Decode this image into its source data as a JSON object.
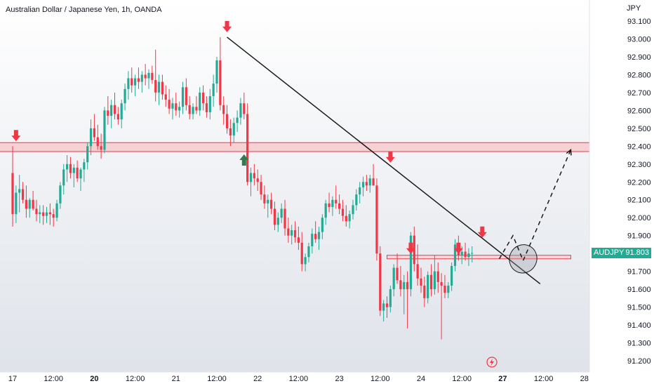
{
  "title": "Australian Dollar / Japanese Yen, 1h, OANDA",
  "currency": "JPY",
  "symbol_tag": {
    "symbol": "AUDJPY",
    "price": "91.803",
    "color": "#22ab94"
  },
  "lightning_icon": "lightning-icon",
  "colors": {
    "up": "#22ab94",
    "down": "#f23645",
    "zone_fill": "#f7c9cc",
    "zone_stroke": "#f23645",
    "trendline": "#1a1a1a",
    "arrow_red": "#f23645",
    "arrow_green": "#2e7d4a",
    "background_top": "#ffffff",
    "background_bottom": "#dfe3ea"
  },
  "chart_data": {
    "type": "candlestick",
    "title": "Australian Dollar / Japanese Yen, 1h, OANDA",
    "ylabel": "JPY",
    "ylim": [
      91.15,
      93.18
    ],
    "grid": false,
    "y_ticks": [
      "93.100",
      "93.000",
      "92.900",
      "92.800",
      "92.700",
      "92.600",
      "92.500",
      "92.400",
      "92.300",
      "92.200",
      "92.100",
      "92.000",
      "91.900",
      "91.800",
      "91.700",
      "91.600",
      "91.500",
      "91.400",
      "91.300",
      "91.200"
    ],
    "x_ticks": [
      {
        "label": "17",
        "bold": false,
        "pos": 0
      },
      {
        "label": "12:00",
        "bold": false,
        "pos": 12
      },
      {
        "label": "20",
        "bold": true,
        "pos": 24
      },
      {
        "label": "12:00",
        "bold": false,
        "pos": 36
      },
      {
        "label": "21",
        "bold": false,
        "pos": 48
      },
      {
        "label": "12:00",
        "bold": false,
        "pos": 60
      },
      {
        "label": "22",
        "bold": false,
        "pos": 72
      },
      {
        "label": "12:00",
        "bold": false,
        "pos": 84
      },
      {
        "label": "23",
        "bold": false,
        "pos": 96
      },
      {
        "label": "12:00",
        "bold": false,
        "pos": 108
      },
      {
        "label": "24",
        "bold": false,
        "pos": 120
      },
      {
        "label": "12:00",
        "bold": false,
        "pos": 132
      },
      {
        "label": "27",
        "bold": true,
        "pos": 144
      },
      {
        "label": "12:00",
        "bold": false,
        "pos": 156
      },
      {
        "label": "28",
        "bold": false,
        "pos": 168
      }
    ],
    "annotations": {
      "resistance_zone": {
        "from": 92.37,
        "to": 92.42,
        "x_start": -4,
        "x_end": 171
      },
      "support_zone": {
        "from": 91.77,
        "to": 91.79,
        "x_start": 110,
        "x_end": 164
      },
      "trendline": [
        {
          "x": 63,
          "y": 93.01
        },
        {
          "x": 155,
          "y": 91.63
        }
      ],
      "forecast_path": [
        {
          "x": 143,
          "y": 91.77
        },
        {
          "x": 147,
          "y": 91.9
        },
        {
          "x": 150,
          "y": 91.76
        },
        {
          "x": 164,
          "y": 92.38
        }
      ],
      "ellipse": {
        "x": 150,
        "y": 91.77,
        "rx_bars": 4,
        "ry_price": 0.08
      },
      "arrows_down": [
        {
          "x": 1,
          "y": 92.42
        },
        {
          "x": 63,
          "y": 93.03
        },
        {
          "x": 111,
          "y": 92.3
        },
        {
          "x": 117,
          "y": 91.79
        },
        {
          "x": 131,
          "y": 91.79
        },
        {
          "x": 138,
          "y": 91.88
        }
      ],
      "arrows_up": [
        {
          "x": 68,
          "y": 92.37
        }
      ]
    },
    "candles": [
      [
        92.25,
        92.4,
        91.95,
        92.02
      ],
      [
        92.02,
        92.18,
        91.97,
        92.14
      ],
      [
        92.14,
        92.24,
        92.03,
        92.16
      ],
      [
        92.16,
        92.2,
        92.08,
        92.1
      ],
      [
        92.1,
        92.18,
        92.0,
        92.05
      ],
      [
        92.05,
        92.11,
        92.0,
        92.1
      ],
      [
        92.1,
        92.15,
        92.04,
        92.05
      ],
      [
        92.05,
        92.1,
        91.98,
        92.02
      ],
      [
        92.02,
        92.07,
        91.97,
        92.03
      ],
      [
        92.03,
        92.07,
        91.96,
        92.01
      ],
      [
        92.01,
        92.06,
        91.97,
        92.03
      ],
      [
        92.03,
        92.08,
        91.96,
        92.02
      ],
      [
        92.02,
        92.05,
        91.95,
        92.0
      ],
      [
        92.0,
        92.1,
        91.98,
        92.08
      ],
      [
        92.08,
        92.2,
        92.05,
        92.18
      ],
      [
        92.18,
        92.3,
        92.13,
        92.27
      ],
      [
        92.27,
        92.35,
        92.2,
        92.3
      ],
      [
        92.3,
        92.34,
        92.22,
        92.25
      ],
      [
        92.25,
        92.3,
        92.17,
        92.28
      ],
      [
        92.28,
        92.32,
        92.2,
        92.22
      ],
      [
        92.22,
        92.28,
        92.15,
        92.27
      ],
      [
        92.27,
        92.33,
        92.2,
        92.31
      ],
      [
        92.31,
        92.42,
        92.27,
        92.4
      ],
      [
        92.4,
        92.55,
        92.35,
        92.5
      ],
      [
        92.5,
        92.58,
        92.43,
        92.45
      ],
      [
        92.45,
        92.52,
        92.38,
        92.4
      ],
      [
        92.4,
        92.47,
        92.33,
        92.38
      ],
      [
        92.38,
        92.62,
        92.36,
        92.6
      ],
      [
        92.6,
        92.68,
        92.52,
        92.57
      ],
      [
        92.57,
        92.66,
        92.5,
        92.63
      ],
      [
        92.63,
        92.7,
        92.55,
        92.58
      ],
      [
        92.58,
        92.62,
        92.52,
        92.55
      ],
      [
        92.55,
        92.66,
        92.5,
        92.64
      ],
      [
        92.64,
        92.75,
        92.6,
        92.72
      ],
      [
        92.72,
        92.82,
        92.66,
        92.78
      ],
      [
        92.78,
        92.84,
        92.7,
        92.74
      ],
      [
        92.74,
        92.8,
        92.68,
        92.78
      ],
      [
        92.78,
        92.84,
        92.72,
        92.76
      ],
      [
        92.76,
        92.82,
        92.7,
        92.8
      ],
      [
        92.8,
        92.86,
        92.74,
        92.78
      ],
      [
        92.78,
        92.83,
        92.72,
        92.81
      ],
      [
        92.81,
        92.85,
        92.75,
        92.77
      ],
      [
        92.77,
        92.94,
        92.65,
        92.7
      ],
      [
        92.7,
        92.8,
        92.63,
        92.76
      ],
      [
        92.76,
        92.8,
        92.66,
        92.69
      ],
      [
        92.69,
        92.74,
        92.62,
        92.66
      ],
      [
        92.66,
        92.72,
        92.58,
        92.61
      ],
      [
        92.61,
        92.67,
        92.55,
        92.64
      ],
      [
        92.64,
        92.7,
        92.57,
        92.6
      ],
      [
        92.6,
        92.65,
        92.56,
        92.62
      ],
      [
        92.62,
        92.76,
        92.58,
        92.73
      ],
      [
        92.73,
        92.78,
        92.6,
        92.63
      ],
      [
        92.63,
        92.68,
        92.55,
        92.58
      ],
      [
        92.58,
        92.64,
        92.55,
        92.62
      ],
      [
        92.62,
        92.68,
        92.58,
        92.6
      ],
      [
        92.6,
        92.73,
        92.57,
        92.7
      ],
      [
        92.7,
        92.74,
        92.6,
        92.64
      ],
      [
        92.64,
        92.68,
        92.56,
        92.59
      ],
      [
        92.59,
        92.72,
        92.55,
        92.68
      ],
      [
        92.68,
        92.8,
        92.62,
        92.75
      ],
      [
        92.75,
        92.9,
        92.7,
        92.88
      ],
      [
        92.88,
        93.01,
        92.6,
        92.63
      ],
      [
        92.63,
        92.68,
        92.52,
        92.58
      ],
      [
        92.58,
        92.63,
        92.47,
        92.5
      ],
      [
        92.5,
        92.55,
        92.4,
        92.46
      ],
      [
        92.46,
        92.56,
        92.42,
        92.53
      ],
      [
        92.53,
        92.6,
        92.48,
        92.56
      ],
      [
        92.56,
        92.67,
        92.52,
        92.64
      ],
      [
        92.64,
        92.7,
        92.55,
        92.58
      ],
      [
        92.58,
        92.64,
        92.18,
        92.2
      ],
      [
        92.2,
        92.28,
        92.12,
        92.25
      ],
      [
        92.25,
        92.3,
        92.18,
        92.22
      ],
      [
        92.22,
        92.27,
        92.15,
        92.2
      ],
      [
        92.2,
        92.24,
        92.1,
        92.13
      ],
      [
        92.13,
        92.18,
        92.05,
        92.08
      ],
      [
        92.08,
        92.13,
        92.0,
        92.1
      ],
      [
        92.1,
        92.14,
        92.02,
        92.05
      ],
      [
        92.05,
        92.09,
        91.93,
        91.96
      ],
      [
        91.96,
        92.03,
        91.92,
        92.0
      ],
      [
        92.0,
        92.08,
        91.97,
        92.05
      ],
      [
        92.05,
        92.1,
        91.9,
        91.94
      ],
      [
        91.94,
        92.0,
        91.86,
        91.9
      ],
      [
        91.9,
        91.96,
        91.85,
        91.93
      ],
      [
        91.93,
        91.98,
        91.86,
        91.89
      ],
      [
        91.89,
        91.95,
        91.82,
        91.86
      ],
      [
        91.86,
        91.92,
        91.7,
        91.74
      ],
      [
        91.74,
        91.8,
        91.7,
        91.78
      ],
      [
        91.78,
        91.86,
        91.75,
        91.84
      ],
      [
        91.84,
        91.94,
        91.8,
        91.91
      ],
      [
        91.91,
        91.98,
        91.86,
        91.88
      ],
      [
        91.88,
        91.95,
        91.82,
        91.92
      ],
      [
        91.92,
        92.02,
        91.88,
        92.0
      ],
      [
        92.0,
        92.1,
        91.96,
        92.08
      ],
      [
        92.08,
        92.14,
        92.03,
        92.06
      ],
      [
        92.06,
        92.12,
        92.01,
        92.1
      ],
      [
        92.1,
        92.18,
        92.05,
        92.08
      ],
      [
        92.08,
        92.13,
        92.02,
        92.05
      ],
      [
        92.05,
        92.1,
        91.98,
        92.01
      ],
      [
        92.01,
        92.07,
        91.95,
        91.98
      ],
      [
        91.98,
        92.04,
        91.94,
        92.02
      ],
      [
        92.02,
        92.1,
        91.99,
        92.07
      ],
      [
        92.07,
        92.16,
        92.04,
        92.13
      ],
      [
        92.13,
        92.2,
        92.08,
        92.17
      ],
      [
        92.17,
        92.23,
        92.12,
        92.2
      ],
      [
        92.2,
        92.24,
        92.15,
        92.18
      ],
      [
        92.18,
        92.24,
        92.14,
        92.22
      ],
      [
        92.22,
        92.3,
        92.18,
        92.18
      ],
      [
        92.18,
        92.22,
        91.76,
        91.8
      ],
      [
        91.8,
        91.84,
        91.45,
        91.48
      ],
      [
        91.48,
        91.54,
        91.42,
        91.52
      ],
      [
        91.52,
        91.56,
        91.44,
        91.5
      ],
      [
        91.5,
        91.62,
        91.47,
        91.6
      ],
      [
        91.6,
        91.74,
        91.56,
        91.72
      ],
      [
        91.72,
        91.8,
        91.63,
        91.65
      ],
      [
        91.65,
        91.73,
        91.56,
        91.6
      ],
      [
        91.6,
        91.68,
        91.46,
        91.64
      ],
      [
        91.64,
        91.7,
        91.38,
        91.6
      ],
      [
        91.6,
        91.92,
        91.56,
        91.9
      ],
      [
        91.9,
        91.95,
        91.7,
        91.74
      ],
      [
        91.74,
        91.85,
        91.62,
        91.66
      ],
      [
        91.66,
        91.72,
        91.58,
        91.62
      ],
      [
        91.62,
        91.67,
        91.5,
        91.55
      ],
      [
        91.55,
        91.7,
        91.52,
        91.68
      ],
      [
        91.68,
        91.74,
        91.56,
        91.6
      ],
      [
        91.6,
        91.79,
        91.57,
        91.7
      ],
      [
        91.7,
        91.75,
        91.58,
        91.64
      ],
      [
        91.64,
        91.69,
        91.32,
        91.62
      ],
      [
        91.62,
        91.68,
        91.55,
        91.58
      ],
      [
        91.58,
        91.64,
        91.55,
        91.62
      ],
      [
        91.62,
        91.75,
        91.59,
        91.73
      ],
      [
        91.73,
        91.88,
        91.7,
        91.85
      ],
      [
        91.85,
        91.9,
        91.76,
        91.79
      ],
      [
        91.79,
        91.84,
        91.74,
        91.81
      ],
      [
        91.81,
        91.86,
        91.76,
        91.78
      ],
      [
        91.78,
        91.83,
        91.73,
        91.8
      ],
      [
        91.8,
        91.84,
        91.75,
        91.803
      ]
    ]
  }
}
